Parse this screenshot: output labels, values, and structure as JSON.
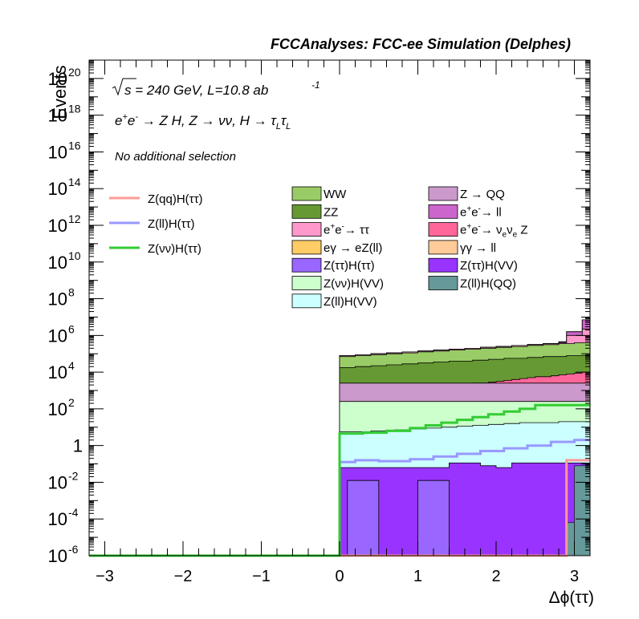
{
  "chart_data": {
    "type": "histogram-stacked",
    "title": "FCCAnalyses: FCC-ee Simulation (Delphes)",
    "xlabel": "Δϕ(ττ)",
    "ylabel": "Events",
    "xlim": [
      -3.2,
      3.2
    ],
    "ylim_log10": [
      -6,
      21
    ],
    "yscale": "log",
    "annotations": {
      "energy_sqrt": "s",
      "energy_rest": " = 240 GeV, L=10.8 ab",
      "energy_exp": "-1",
      "process_parts": [
        "e",
        "+",
        "e",
        "-",
        " → Z H, Z  → νν, H  → τ",
        "L",
        "τ",
        "L"
      ],
      "selection": "No additional selection"
    },
    "x_ticks": [
      {
        "v": -3,
        "label": "−3"
      },
      {
        "v": -2,
        "label": "−2"
      },
      {
        "v": -1,
        "label": "−1"
      },
      {
        "v": 0,
        "label": "0"
      },
      {
        "v": 1,
        "label": "1"
      },
      {
        "v": 2,
        "label": "2"
      },
      {
        "v": 3,
        "label": "3"
      }
    ],
    "y_ticks": [
      {
        "e": -6,
        "base": "10",
        "exp": "-6"
      },
      {
        "e": -4,
        "base": "10",
        "exp": "-4"
      },
      {
        "e": -2,
        "base": "10",
        "exp": "-2"
      },
      {
        "e": 0,
        "base": "1",
        "exp": ""
      },
      {
        "e": 2,
        "base": "10",
        "exp": "2"
      },
      {
        "e": 4,
        "base": "10",
        "exp": "4"
      },
      {
        "e": 6,
        "base": "10",
        "exp": "6"
      },
      {
        "e": 8,
        "base": "10",
        "exp": "8"
      },
      {
        "e": 10,
        "base": "10",
        "exp": "10"
      },
      {
        "e": 12,
        "base": "10",
        "exp": "12"
      },
      {
        "e": 14,
        "base": "10",
        "exp": "14"
      },
      {
        "e": 16,
        "base": "10",
        "exp": "16"
      },
      {
        "e": 18,
        "base": "10",
        "exp": "18"
      },
      {
        "e": 20,
        "base": "10",
        "exp": "20"
      }
    ],
    "stack_bins_x0": 0.0,
    "stack_bin_width": 0.1,
    "stack_layers": [
      {
        "label": "Z(ττ)H(ττ)",
        "color": "#9966ff",
        "log10_top": [
          -6,
          -1.9,
          -1.9,
          -1.9,
          -1.9,
          -6,
          -6,
          -6,
          -6,
          -6,
          -1.9,
          -1.9,
          -1.9,
          -1.9,
          -6,
          -6,
          -6,
          -6,
          -6,
          -6,
          -6,
          -6,
          -6,
          -6,
          -6,
          -6,
          -6,
          -6,
          -6,
          -6,
          -6,
          -6
        ]
      },
      {
        "label": "Z(ττ)H(VV)",
        "color": "#9933ff",
        "log10_top": [
          -1.2,
          -1.2,
          -1.2,
          -1.2,
          -1.2,
          -1.2,
          -1.2,
          -1.2,
          -1.2,
          -1.2,
          -1.2,
          -1.2,
          -1.2,
          -1.2,
          -0.95,
          -0.95,
          -0.95,
          -0.95,
          -1.1,
          -1.1,
          -1.2,
          -1.2,
          -0.95,
          -0.95,
          -0.95,
          -0.95,
          -0.95,
          -0.95,
          -0.95,
          -0.95,
          -0.95,
          -0.95
        ]
      },
      {
        "label": "Z(ll)H(VV)",
        "color": "#ccffff",
        "log10_top": [
          0.75,
          0.75,
          0.75,
          0.75,
          0.8,
          0.8,
          0.8,
          0.85,
          0.85,
          0.9,
          0.9,
          0.95,
          0.95,
          1.0,
          1.0,
          1.05,
          1.05,
          1.1,
          1.1,
          1.15,
          1.15,
          1.2,
          1.2,
          1.25,
          1.25,
          1.25,
          1.25,
          1.25,
          1.3,
          1.3,
          1.3,
          1.3
        ]
      },
      {
        "label": "Z(νν)H(VV)",
        "color": "#ccffcc",
        "log10_top": [
          2.4,
          2.4,
          2.4,
          2.4,
          2.4,
          2.4,
          2.4,
          2.4,
          2.4,
          2.4,
          2.4,
          2.4,
          2.4,
          2.4,
          2.4,
          2.4,
          2.4,
          2.4,
          2.4,
          2.4,
          2.4,
          2.4,
          2.4,
          2.4,
          2.4,
          2.4,
          2.4,
          2.4,
          2.4,
          2.4,
          2.4,
          2.4
        ]
      },
      {
        "label": "Z → QQ",
        "color": "#cc99cc",
        "log10_top": [
          3.4,
          3.4,
          3.4,
          3.4,
          3.4,
          3.4,
          3.4,
          3.4,
          3.4,
          3.4,
          3.4,
          3.4,
          3.4,
          3.4,
          3.4,
          3.4,
          3.4,
          3.4,
          3.4,
          3.4,
          3.4,
          3.4,
          3.4,
          3.4,
          3.4,
          3.4,
          3.4,
          3.4,
          3.4,
          3.4,
          3.4,
          3.4
        ]
      },
      {
        "label": "e+e- → νeνe Z",
        "color": "#ff6699",
        "log10_top": [
          3.0,
          3.0,
          3.0,
          3.0,
          3.0,
          3.0,
          3.05,
          3.05,
          3.1,
          3.1,
          3.15,
          3.15,
          3.2,
          3.25,
          3.3,
          3.3,
          3.35,
          3.4,
          3.4,
          3.45,
          3.5,
          3.55,
          3.6,
          3.65,
          3.7,
          3.75,
          3.75,
          3.8,
          3.85,
          3.9,
          3.95,
          4.0
        ]
      },
      {
        "label": "ZZ",
        "color": "#669933",
        "log10_top": [
          4.25,
          4.25,
          4.3,
          4.3,
          4.35,
          4.35,
          4.4,
          4.4,
          4.45,
          4.45,
          4.5,
          4.5,
          4.55,
          4.55,
          4.6,
          4.6,
          4.6,
          4.65,
          4.65,
          4.7,
          4.7,
          4.75,
          4.75,
          4.75,
          4.8,
          4.8,
          4.85,
          4.85,
          4.85,
          4.9,
          4.9,
          4.9
        ]
      },
      {
        "label": "WW",
        "color": "#99cc66",
        "log10_top": [
          4.85,
          4.85,
          4.9,
          4.9,
          4.95,
          4.95,
          5.0,
          5.0,
          5.05,
          5.05,
          5.1,
          5.1,
          5.15,
          5.15,
          5.2,
          5.2,
          5.25,
          5.25,
          5.3,
          5.3,
          5.35,
          5.35,
          5.4,
          5.4,
          5.45,
          5.45,
          5.5,
          5.5,
          5.55,
          5.55,
          5.6,
          5.6
        ]
      },
      {
        "label": "e+e- → ττ",
        "color": "#ff99cc",
        "log10_top": [
          4.9,
          4.9,
          4.95,
          4.95,
          5.0,
          5.0,
          5.05,
          5.05,
          5.1,
          5.1,
          5.15,
          5.15,
          5.2,
          5.2,
          5.25,
          5.25,
          5.3,
          5.3,
          5.35,
          5.35,
          5.4,
          5.4,
          5.45,
          5.45,
          5.5,
          5.5,
          5.55,
          5.55,
          5.6,
          6.0,
          6.0,
          6.35
        ]
      },
      {
        "label": "e+e- → ll",
        "color": "#cc66cc",
        "log10_top": [
          4.9,
          4.9,
          4.95,
          4.95,
          5.0,
          5.0,
          5.05,
          5.05,
          5.1,
          5.1,
          5.15,
          5.15,
          5.2,
          5.2,
          5.25,
          5.25,
          5.3,
          5.3,
          5.35,
          5.35,
          5.4,
          5.4,
          5.45,
          5.45,
          5.5,
          5.5,
          5.55,
          5.55,
          5.65,
          6.2,
          6.2,
          6.85
        ]
      },
      {
        "label": "γγ → ll",
        "color": "#ffcc99",
        "log10_top": [
          4.9,
          4.9,
          4.95,
          4.95,
          5.0,
          5.0,
          5.05,
          5.05,
          5.1,
          5.1,
          5.15,
          5.15,
          5.2,
          5.2,
          5.25,
          5.25,
          5.3,
          5.3,
          5.35,
          5.35,
          5.4,
          5.4,
          5.45,
          5.45,
          5.5,
          5.5,
          5.55,
          5.55,
          5.65,
          6.2,
          6.2,
          6.85
        ]
      },
      {
        "label": "eγ → eZ(ll)",
        "color": "#ffcc66",
        "log10_top": [
          4.9,
          4.9,
          4.95,
          4.95,
          5.0,
          5.0,
          5.05,
          5.05,
          5.1,
          5.1,
          5.15,
          5.15,
          5.2,
          5.2,
          5.25,
          5.25,
          5.3,
          5.3,
          5.35,
          5.35,
          5.4,
          5.4,
          5.45,
          5.45,
          5.5,
          5.5,
          5.55,
          5.55,
          5.65,
          6.2,
          6.2,
          6.85
        ]
      }
    ],
    "small_bars": [
      {
        "label": "Z(ll)H(QQ)",
        "color": "#669999",
        "x0": 2.9,
        "x1": 3.0,
        "log10_top": -4.2
      },
      {
        "label": "Z(ll)H(QQ)",
        "color": "#669999",
        "x0": 3.0,
        "x1": 3.2,
        "log10_top": -1.1
      }
    ],
    "overlay_lines": [
      {
        "label": "Z(qq)H(ττ)",
        "color": "#ff9999",
        "points": [
          [
            -3.2,
            -6
          ],
          [
            2.9,
            -6
          ],
          [
            2.9,
            -0.8
          ],
          [
            3.2,
            -0.8
          ]
        ]
      },
      {
        "label": "Z(ll)H(ττ)",
        "color": "#9999ff",
        "points": [
          [
            -3.2,
            -6
          ],
          [
            0.0,
            -6
          ],
          [
            0.0,
            -0.9
          ],
          [
            0.2,
            -0.9
          ],
          [
            0.2,
            -0.8
          ],
          [
            0.5,
            -0.8
          ],
          [
            0.5,
            -0.85
          ],
          [
            0.9,
            -0.85
          ],
          [
            0.9,
            -0.75
          ],
          [
            1.2,
            -0.75
          ],
          [
            1.2,
            -0.6
          ],
          [
            1.5,
            -0.6
          ],
          [
            1.5,
            -0.45
          ],
          [
            1.8,
            -0.45
          ],
          [
            1.8,
            -0.3
          ],
          [
            2.1,
            -0.3
          ],
          [
            2.1,
            -0.15
          ],
          [
            2.4,
            -0.15
          ],
          [
            2.4,
            0.0
          ],
          [
            2.7,
            0.0
          ],
          [
            2.7,
            0.2
          ],
          [
            3.0,
            0.2
          ],
          [
            3.0,
            0.3
          ],
          [
            3.2,
            0.3
          ]
        ]
      },
      {
        "label": "Z(νν)H(ττ)",
        "color": "#33cc33",
        "points": [
          [
            -3.2,
            -6
          ],
          [
            0.0,
            -6
          ],
          [
            0.0,
            0.65
          ],
          [
            0.3,
            0.65
          ],
          [
            0.3,
            0.7
          ],
          [
            0.6,
            0.7
          ],
          [
            0.6,
            0.8
          ],
          [
            0.9,
            0.8
          ],
          [
            0.9,
            0.95
          ],
          [
            1.1,
            0.95
          ],
          [
            1.1,
            1.1
          ],
          [
            1.3,
            1.1
          ],
          [
            1.3,
            1.25
          ],
          [
            1.5,
            1.25
          ],
          [
            1.5,
            1.4
          ],
          [
            1.7,
            1.4
          ],
          [
            1.7,
            1.55
          ],
          [
            1.9,
            1.55
          ],
          [
            1.9,
            1.7
          ],
          [
            2.1,
            1.7
          ],
          [
            2.1,
            1.85
          ],
          [
            2.3,
            1.85
          ],
          [
            2.3,
            2.0
          ],
          [
            2.5,
            2.0
          ],
          [
            2.5,
            2.2
          ],
          [
            3.2,
            2.2
          ]
        ]
      }
    ],
    "legend_left": [
      {
        "label": "Z(qq)H(ττ)",
        "color": "#ff9999"
      },
      {
        "label": "Z(ll)H(ττ)",
        "color": "#9999ff"
      },
      {
        "label": "Z(νν)H(ττ)",
        "color": "#33cc33"
      }
    ],
    "legend_mid": [
      {
        "parts": [
          "WW"
        ],
        "color": "#99cc66"
      },
      {
        "parts": [
          "ZZ"
        ],
        "color": "#669933"
      },
      {
        "parts": [
          "e",
          "+",
          "e",
          "-",
          "→ ττ"
        ],
        "color": "#ff99cc"
      },
      {
        "parts": [
          "eγ → eZ(ll)"
        ],
        "color": "#ffcc66"
      },
      {
        "parts": [
          "Z(ττ)H(ττ)"
        ],
        "color": "#9966ff"
      },
      {
        "parts": [
          "Z(νν)H(VV)"
        ],
        "color": "#ccffcc"
      },
      {
        "parts": [
          "Z(ll)H(VV)"
        ],
        "color": "#ccffff"
      }
    ],
    "legend_right": [
      {
        "parts": [
          "Z → QQ"
        ],
        "color": "#cc99cc"
      },
      {
        "parts": [
          "e",
          "+",
          "e",
          "-",
          "→ ll"
        ],
        "color": "#cc66cc"
      },
      {
        "parts": [
          "e",
          "+",
          "e",
          "-",
          "→ ν",
          "e",
          "ν",
          "e",
          " Z"
        ],
        "color": "#ff6699"
      },
      {
        "parts": [
          "γγ → ll"
        ],
        "color": "#ffcc99"
      },
      {
        "parts": [
          "Z(ττ)H(VV)"
        ],
        "color": "#9933ff"
      },
      {
        "parts": [
          "Z(ll)H(QQ)"
        ],
        "color": "#669999"
      }
    ],
    "grid": false,
    "legend_placement": "upper area inside plot"
  }
}
